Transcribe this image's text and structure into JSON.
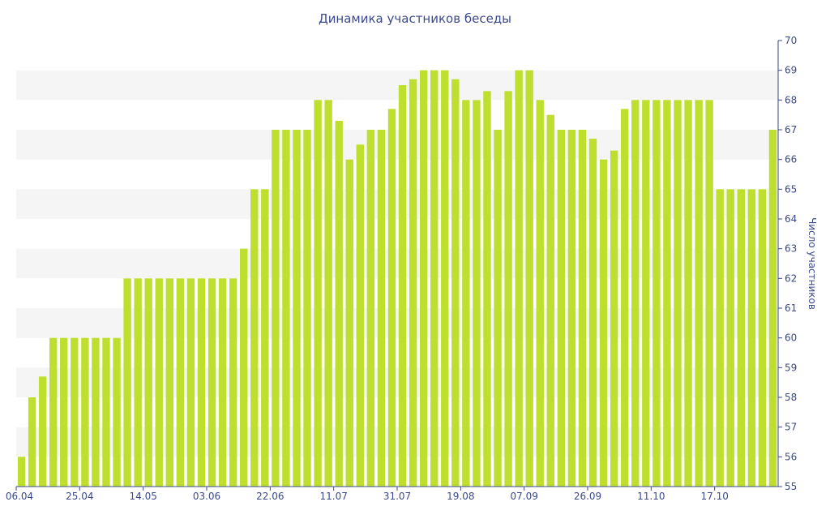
{
  "chart_data": {
    "type": "bar",
    "title": "Динамика участников беседы",
    "ylabel": "Число участников",
    "xlabel": "",
    "ylim": [
      55,
      70
    ],
    "y_ticks": [
      55,
      56,
      57,
      58,
      59,
      60,
      61,
      62,
      63,
      64,
      65,
      66,
      67,
      68,
      69,
      70
    ],
    "x_tick_labels": [
      "06.04",
      "25.04",
      "14.05",
      "03.06",
      "22.06",
      "11.07",
      "31.07",
      "19.08",
      "07.09",
      "26.09",
      "11.10",
      "17.10"
    ],
    "bar_color": "#bedf2e",
    "grid_band_color": "#f5f5f5",
    "axis_color": "#3b4a8a",
    "values": [
      56,
      58,
      58.7,
      60,
      60,
      60,
      60,
      60,
      60,
      60,
      62,
      62,
      62,
      62,
      62,
      62,
      62,
      62,
      62,
      62,
      62,
      63,
      65,
      65,
      67,
      67,
      67,
      67,
      68,
      68,
      67.3,
      66,
      66.5,
      67,
      67,
      67.7,
      68.5,
      68.7,
      69,
      69,
      69,
      68.7,
      68,
      68,
      68.3,
      67,
      68.3,
      69,
      69,
      68,
      67.5,
      67,
      67,
      67,
      66.7,
      66,
      66.3,
      67.7,
      68,
      68,
      68,
      68,
      68,
      68,
      68,
      68,
      65,
      65,
      65,
      65,
      65,
      67
    ]
  }
}
